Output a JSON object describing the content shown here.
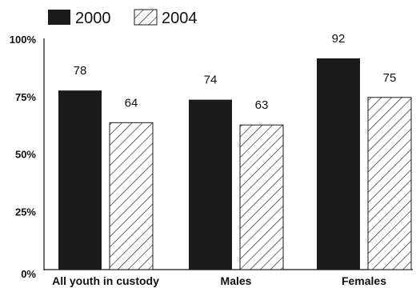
{
  "chart_data": {
    "type": "bar",
    "categories": [
      "All youth in custody",
      "Males",
      "Females"
    ],
    "series": [
      {
        "name": "2000",
        "values": [
          78,
          74,
          92
        ],
        "fill": "solid",
        "color": "#1a1a1a"
      },
      {
        "name": "2004",
        "values": [
          64,
          63,
          75
        ],
        "fill": "hatched",
        "color": "#1a1a1a"
      }
    ],
    "ylim": [
      0,
      100
    ],
    "yticks": [
      "0%",
      "25%",
      "50%",
      "75%",
      "100%"
    ],
    "ytick_values": [
      0,
      25,
      50,
      75,
      100
    ],
    "legend_position": "top-left",
    "grid": false
  }
}
